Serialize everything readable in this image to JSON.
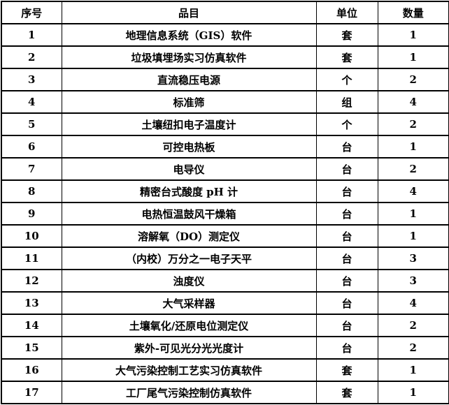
{
  "table": {
    "columns": [
      {
        "key": "no",
        "label": "序号"
      },
      {
        "key": "item",
        "label": "品目"
      },
      {
        "key": "unit",
        "label": "单位"
      },
      {
        "key": "qty",
        "label": "数量"
      }
    ],
    "rows": [
      {
        "no": "1",
        "item": "地理信息系统（GIS）软件",
        "unit": "套",
        "qty": "1"
      },
      {
        "no": "2",
        "item": "垃圾填埋场实习仿真软件",
        "unit": "套",
        "qty": "1"
      },
      {
        "no": "3",
        "item": "直流稳压电源",
        "unit": "个",
        "qty": "2"
      },
      {
        "no": "4",
        "item": "标准筛",
        "unit": "组",
        "qty": "4"
      },
      {
        "no": "5",
        "item": "土壤纽扣电子温度计",
        "unit": "个",
        "qty": "2"
      },
      {
        "no": "6",
        "item": "可控电热板",
        "unit": "台",
        "qty": "1"
      },
      {
        "no": "7",
        "item": "电导仪",
        "unit": "台",
        "qty": "2"
      },
      {
        "no": "8",
        "item": "精密台式酸度 pH 计",
        "unit": "台",
        "qty": "4"
      },
      {
        "no": "9",
        "item": "电热恒温鼓风干燥箱",
        "unit": "台",
        "qty": "1"
      },
      {
        "no": "10",
        "item": "溶解氧（DO）测定仪",
        "unit": "台",
        "qty": "1"
      },
      {
        "no": "11",
        "item": "（内校）万分之一电子天平",
        "unit": "台",
        "qty": "3"
      },
      {
        "no": "12",
        "item": "浊度仪",
        "unit": "台",
        "qty": "3"
      },
      {
        "no": "13",
        "item": "大气采样器",
        "unit": "台",
        "qty": "4"
      },
      {
        "no": "14",
        "item": "土壤氧化/还原电位测定仪",
        "unit": "台",
        "qty": "2"
      },
      {
        "no": "15",
        "item": "紫外-可见光分光光度计",
        "unit": "台",
        "qty": "2"
      },
      {
        "no": "16",
        "item": "大气污染控制工艺实习仿真软件",
        "unit": "套",
        "qty": "1"
      },
      {
        "no": "17",
        "item": "工厂尾气污染控制仿真软件",
        "unit": "套",
        "qty": "1"
      }
    ]
  }
}
